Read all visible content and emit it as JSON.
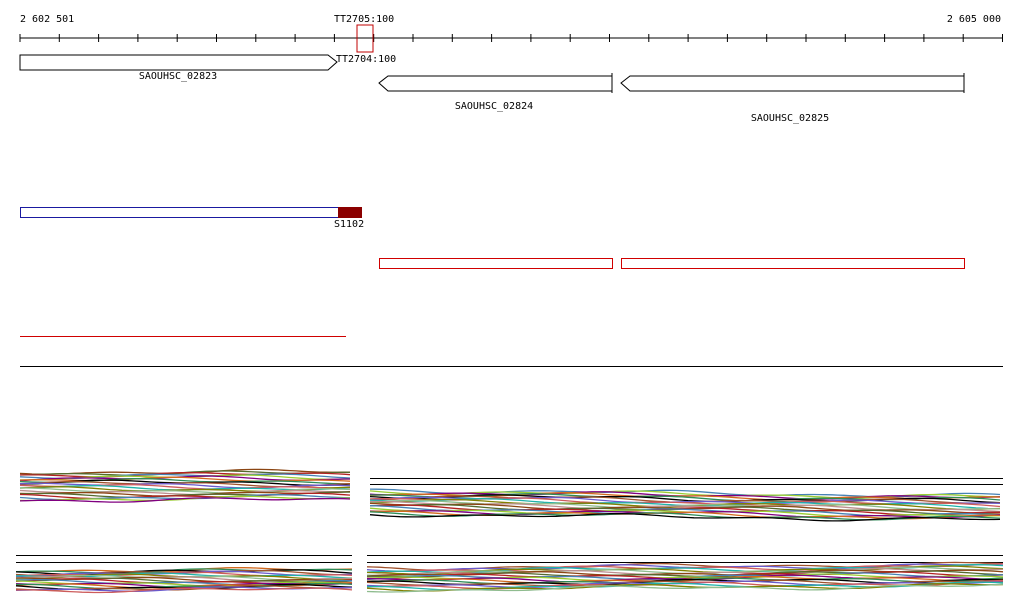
{
  "ruler": {
    "start": "2 602 501",
    "end": "2 605 000",
    "marker_top": "TT2705:100",
    "marker_bottom": "TT2704:100"
  },
  "genes": [
    {
      "label": "SAOUHSC_02823"
    },
    {
      "label": "SAOUHSC_02824"
    },
    {
      "label": "SAOUHSC_02825"
    }
  ],
  "feature": {
    "label": "S1102"
  }
}
